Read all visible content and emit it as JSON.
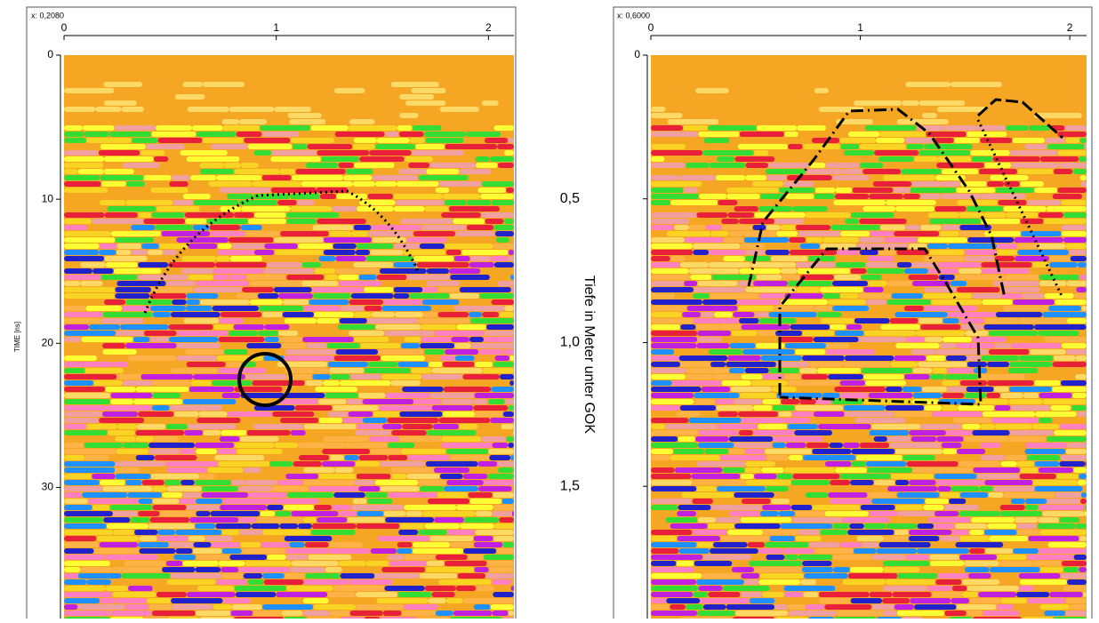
{
  "chart_data": [
    {
      "type": "radargram",
      "header": "x: 0,2080",
      "y_label": "TIME [ns]",
      "xlim": [
        0,
        2.12
      ],
      "xticks": [
        0,
        1,
        2
      ],
      "ylim": [
        0,
        39.1
      ],
      "yticks": [
        0,
        10,
        20,
        30
      ]
    },
    {
      "type": "radargram",
      "header": "x: 0,6000",
      "y_label": "Tiefe in Meter unter GOK",
      "xlim": [
        0,
        2.08
      ],
      "xticks": [
        0,
        1,
        2
      ],
      "ylim": [
        0,
        1.96
      ],
      "yticks": [
        0,
        {
          "value": 0.5,
          "label": "0,5"
        },
        {
          "value": 1.0,
          "label": "1,0"
        },
        {
          "value": 1.5,
          "label": "1,5"
        }
      ]
    }
  ]
}
